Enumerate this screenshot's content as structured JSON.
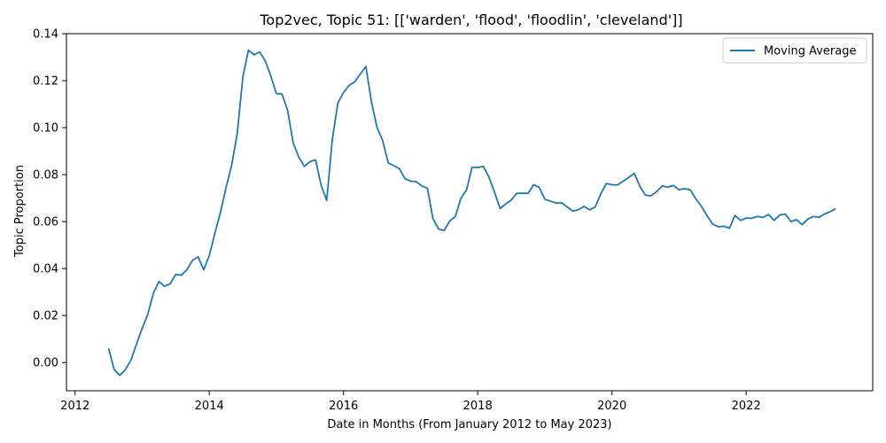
{
  "chart_data": {
    "type": "line",
    "title": "Top2vec, Topic 51: [['warden', 'flood', 'floodlin', 'cleveland']]",
    "xlabel": "Date in Months (From January 2012 to May 2023)",
    "ylabel": "Topic Proportion",
    "xlim": [
      "2011-11-15",
      "2023-11-20"
    ],
    "ylim": [
      -0.012,
      0.14
    ],
    "x_ticks": [
      "2012",
      "2014",
      "2016",
      "2018",
      "2020",
      "2022"
    ],
    "y_ticks": [
      "0.00",
      "0.02",
      "0.04",
      "0.06",
      "0.08",
      "0.10",
      "0.12",
      "0.14"
    ],
    "grid": false,
    "legend_position": "top-right",
    "series": [
      {
        "name": "Moving Average",
        "color": "#1f77b4",
        "points": [
          [
            "2012-07",
            0.006
          ],
          [
            "2012-08",
            -0.003
          ],
          [
            "2012-09",
            -0.0055
          ],
          [
            "2012-10",
            -0.003
          ],
          [
            "2012-11",
            0.001
          ],
          [
            "2012-12",
            0.008
          ],
          [
            "2013-01",
            0.0145
          ],
          [
            "2013-02",
            0.0205
          ],
          [
            "2013-03",
            0.0295
          ],
          [
            "2013-04",
            0.0345
          ],
          [
            "2013-05",
            0.0325
          ],
          [
            "2013-06",
            0.0335
          ],
          [
            "2013-07",
            0.0375
          ],
          [
            "2013-08",
            0.0372
          ],
          [
            "2013-09",
            0.0395
          ],
          [
            "2013-10",
            0.0435
          ],
          [
            "2013-11",
            0.045
          ],
          [
            "2013-12",
            0.0395
          ],
          [
            "2014-01",
            0.0455
          ],
          [
            "2014-02",
            0.055
          ],
          [
            "2014-03",
            0.064
          ],
          [
            "2014-04",
            0.0745
          ],
          [
            "2014-05",
            0.084
          ],
          [
            "2014-06",
            0.0975
          ],
          [
            "2014-07",
            0.1215
          ],
          [
            "2014-08",
            0.133
          ],
          [
            "2014-09",
            0.131
          ],
          [
            "2014-10",
            0.1322
          ],
          [
            "2014-11",
            0.1285
          ],
          [
            "2014-12",
            0.122
          ],
          [
            "2015-01",
            0.1145
          ],
          [
            "2015-02",
            0.1143
          ],
          [
            "2015-03",
            0.1075
          ],
          [
            "2015-04",
            0.0935
          ],
          [
            "2015-05",
            0.0875
          ],
          [
            "2015-06",
            0.0835
          ],
          [
            "2015-07",
            0.0855
          ],
          [
            "2015-08",
            0.0863
          ],
          [
            "2015-09",
            0.0755
          ],
          [
            "2015-10",
            0.069
          ],
          [
            "2015-11",
            0.095
          ],
          [
            "2015-12",
            0.1105
          ],
          [
            "2016-01",
            0.115
          ],
          [
            "2016-02",
            0.118
          ],
          [
            "2016-03",
            0.1195
          ],
          [
            "2016-04",
            0.1228
          ],
          [
            "2016-05",
            0.126
          ],
          [
            "2016-06",
            0.111
          ],
          [
            "2016-07",
            0.1
          ],
          [
            "2016-08",
            0.0945
          ],
          [
            "2016-09",
            0.085
          ],
          [
            "2016-10",
            0.0838
          ],
          [
            "2016-11",
            0.0825
          ],
          [
            "2016-12",
            0.0782
          ],
          [
            "2017-01",
            0.0772
          ],
          [
            "2017-02",
            0.077
          ],
          [
            "2017-03",
            0.0752
          ],
          [
            "2017-04",
            0.0742
          ],
          [
            "2017-05",
            0.0612
          ],
          [
            "2017-06",
            0.0568
          ],
          [
            "2017-07",
            0.0562
          ],
          [
            "2017-08",
            0.0603
          ],
          [
            "2017-09",
            0.0622
          ],
          [
            "2017-10",
            0.07
          ],
          [
            "2017-11",
            0.0735
          ],
          [
            "2017-12",
            0.0832
          ],
          [
            "2018-01",
            0.083
          ],
          [
            "2018-02",
            0.0835
          ],
          [
            "2018-03",
            0.079
          ],
          [
            "2018-04",
            0.0725
          ],
          [
            "2018-05",
            0.0655
          ],
          [
            "2018-06",
            0.0675
          ],
          [
            "2018-07",
            0.0692
          ],
          [
            "2018-08",
            0.072
          ],
          [
            "2018-09",
            0.0721
          ],
          [
            "2018-10",
            0.072
          ],
          [
            "2018-11",
            0.0757
          ],
          [
            "2018-12",
            0.0745
          ],
          [
            "2019-01",
            0.0695
          ],
          [
            "2019-02",
            0.0687
          ],
          [
            "2019-03",
            0.0679
          ],
          [
            "2019-04",
            0.068
          ],
          [
            "2019-05",
            0.0662
          ],
          [
            "2019-06",
            0.0645
          ],
          [
            "2019-07",
            0.065
          ],
          [
            "2019-08",
            0.0665
          ],
          [
            "2019-09",
            0.065
          ],
          [
            "2019-10",
            0.0662
          ],
          [
            "2019-11",
            0.0718
          ],
          [
            "2019-12",
            0.0762
          ],
          [
            "2020-01",
            0.0757
          ],
          [
            "2020-02",
            0.0756
          ],
          [
            "2020-03",
            0.0772
          ],
          [
            "2020-04",
            0.0788
          ],
          [
            "2020-05",
            0.0805
          ],
          [
            "2020-06",
            0.075
          ],
          [
            "2020-07",
            0.0712
          ],
          [
            "2020-08",
            0.071
          ],
          [
            "2020-09",
            0.0728
          ],
          [
            "2020-10",
            0.0752
          ],
          [
            "2020-11",
            0.0746
          ],
          [
            "2020-12",
            0.0754
          ],
          [
            "2021-01",
            0.0736
          ],
          [
            "2021-02",
            0.074
          ],
          [
            "2021-03",
            0.0735
          ],
          [
            "2021-04",
            0.0697
          ],
          [
            "2021-05",
            0.0665
          ],
          [
            "2021-06",
            0.0625
          ],
          [
            "2021-07",
            0.059
          ],
          [
            "2021-08",
            0.0578
          ],
          [
            "2021-09",
            0.058
          ],
          [
            "2021-10",
            0.0572
          ],
          [
            "2021-11",
            0.0626
          ],
          [
            "2021-12",
            0.0605
          ],
          [
            "2022-01",
            0.0615
          ],
          [
            "2022-02",
            0.0614
          ],
          [
            "2022-03",
            0.0622
          ],
          [
            "2022-04",
            0.0618
          ],
          [
            "2022-05",
            0.063
          ],
          [
            "2022-06",
            0.0605
          ],
          [
            "2022-07",
            0.0628
          ],
          [
            "2022-08",
            0.0632
          ],
          [
            "2022-09",
            0.06
          ],
          [
            "2022-10",
            0.0608
          ],
          [
            "2022-11",
            0.0587
          ],
          [
            "2022-12",
            0.061
          ],
          [
            "2023-01",
            0.0622
          ],
          [
            "2023-02",
            0.0618
          ],
          [
            "2023-03",
            0.0632
          ],
          [
            "2023-04",
            0.0642
          ],
          [
            "2023-05",
            0.0655
          ]
        ]
      }
    ]
  }
}
